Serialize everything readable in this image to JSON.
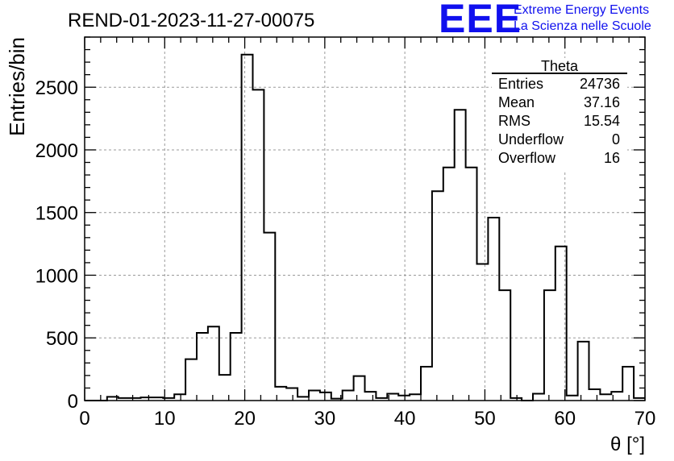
{
  "title": "REND-01-2023-11-27-00075",
  "logo": {
    "mark": "EEE",
    "line1": "Extreme Energy Events",
    "line2": "La Scienza nelle Scuole",
    "color": "#1010ee"
  },
  "stats": {
    "name": "Theta",
    "rows": [
      {
        "label": "Entries",
        "value": "24736"
      },
      {
        "label": "Mean",
        "value": "37.16"
      },
      {
        "label": "RMS",
        "value": "15.54"
      },
      {
        "label": "Underflow",
        "value": "0"
      },
      {
        "label": "Overflow",
        "value": "16"
      }
    ]
  },
  "chart_data": {
    "type": "bar",
    "xlabel": "θ [°]",
    "ylabel": "Entries/bin",
    "xlim": [
      0,
      70
    ],
    "ylim": [
      0,
      2900
    ],
    "xticks": [
      0,
      10,
      20,
      30,
      40,
      50,
      60,
      70
    ],
    "yticks": [
      0,
      500,
      1000,
      1500,
      2000,
      2500
    ],
    "grid": true,
    "bin_width": 1.4,
    "bin_edges_start": 0,
    "values": [
      0,
      0,
      30,
      20,
      20,
      25,
      25,
      20,
      50,
      330,
      540,
      590,
      205,
      540,
      2760,
      2480,
      1340,
      110,
      100,
      30,
      80,
      65,
      15,
      80,
      195,
      70,
      20,
      55,
      40,
      50,
      270,
      1670,
      1860,
      2320,
      1860,
      1090,
      1460,
      880,
      20,
      0,
      55,
      880,
      1230,
      40,
      470,
      90,
      50,
      70,
      270,
      20
    ]
  }
}
